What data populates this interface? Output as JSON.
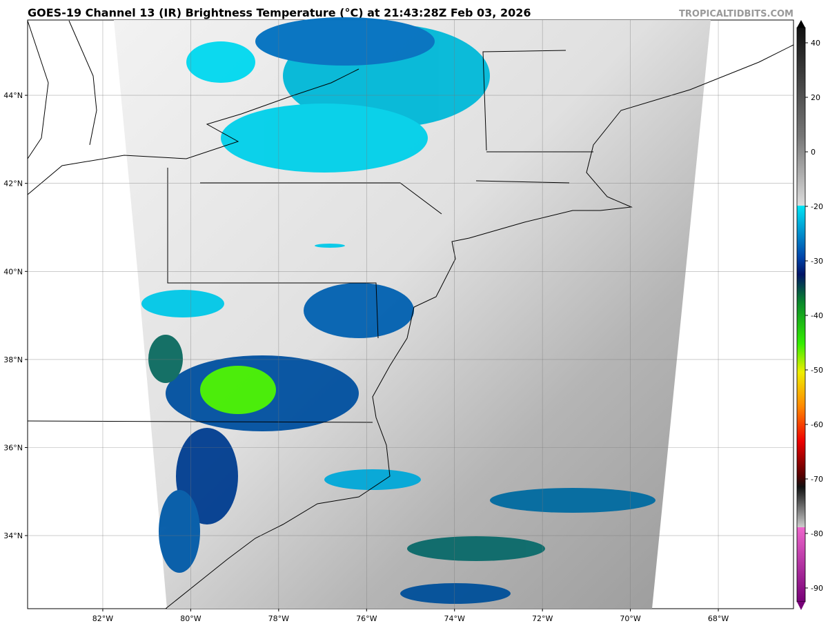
{
  "header": {
    "title": "GOES-19 Channel 13 (IR) Brightness Temperature (°C) at 21:43:28Z Feb 03, 2026",
    "source": "TROPICALTIDBITS.COM"
  },
  "map": {
    "xlim": [
      -83.71,
      -66.29
    ],
    "ylim": [
      32.34,
      45.71
    ],
    "xticks": [
      {
        "value": -82,
        "label": "82°W"
      },
      {
        "value": -80,
        "label": "80°W"
      },
      {
        "value": -78,
        "label": "78°W"
      },
      {
        "value": -76,
        "label": "76°W"
      },
      {
        "value": -74,
        "label": "74°W"
      },
      {
        "value": -72,
        "label": "72°W"
      },
      {
        "value": -70,
        "label": "70°W"
      },
      {
        "value": -68,
        "label": "68°W"
      }
    ],
    "yticks": [
      {
        "value": 44,
        "label": "44°N"
      },
      {
        "value": 42,
        "label": "42°N"
      },
      {
        "value": 40,
        "label": "40°N"
      },
      {
        "value": 38,
        "label": "38°N"
      },
      {
        "value": 36,
        "label": "36°N"
      },
      {
        "value": 34,
        "label": "34°N"
      }
    ],
    "grid": true
  },
  "colorbar": {
    "ticks": [
      40,
      20,
      0,
      -20,
      -30,
      -40,
      -50,
      -60,
      -70,
      -80,
      -90
    ]
  }
}
